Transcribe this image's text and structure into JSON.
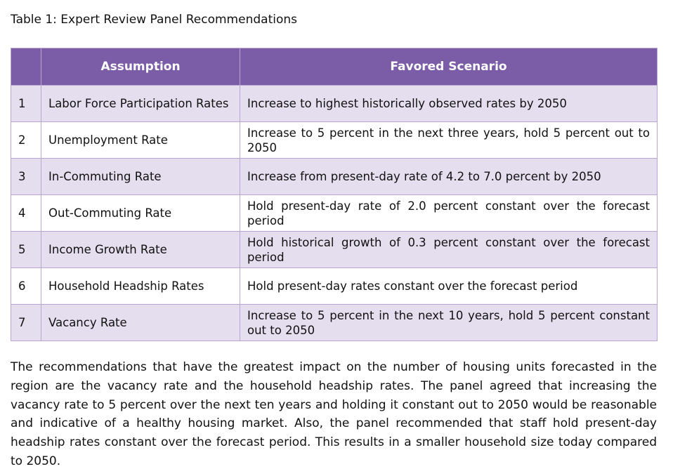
{
  "caption": "Table 1: Expert Review Panel Recommendations",
  "table": {
    "header": [
      "Assumption",
      "Favored Scenario"
    ],
    "rows": [
      [
        "1",
        "Labor Force Participation Rates",
        "Increase to highest historically observed rates by 2050"
      ],
      [
        "2",
        "Unemployment Rate",
        "Increase to 5 percent in the next three years, hold 5 percent out to 2050"
      ],
      [
        "3",
        "In-Commuting Rate",
        "Increase from present-day rate of 4.2 to 7.0 percent by 2050"
      ],
      [
        "4",
        "Out-Commuting Rate",
        "Hold present-day rate of 2.0 percent constant over the forecast period"
      ],
      [
        "5",
        "Income Growth Rate",
        "Hold historical growth of 0.3 percent constant over the forecast period"
      ],
      [
        "6",
        "Household Headship Rates",
        "Hold present-day rates constant over the forecast period"
      ],
      [
        "7",
        "Vacancy Rate",
        "Increase to 5 percent in the next 10 years, hold 5 percent constant out to 2050"
      ]
    ]
  },
  "paragraph": "The recommendations that have the greatest impact on the number of housing units forecasted in the region are the vacancy rate and the household headship rates. The panel agreed that increasing the vacancy rate to 5 percent over the next ten years and holding it constant out to 2050 would be reasonable and indicative of a healthy housing market. Also, the panel recommended that staff hold present-day headship rates constant over the forecast period. This results in a smaller household size today compared to 2050."
}
